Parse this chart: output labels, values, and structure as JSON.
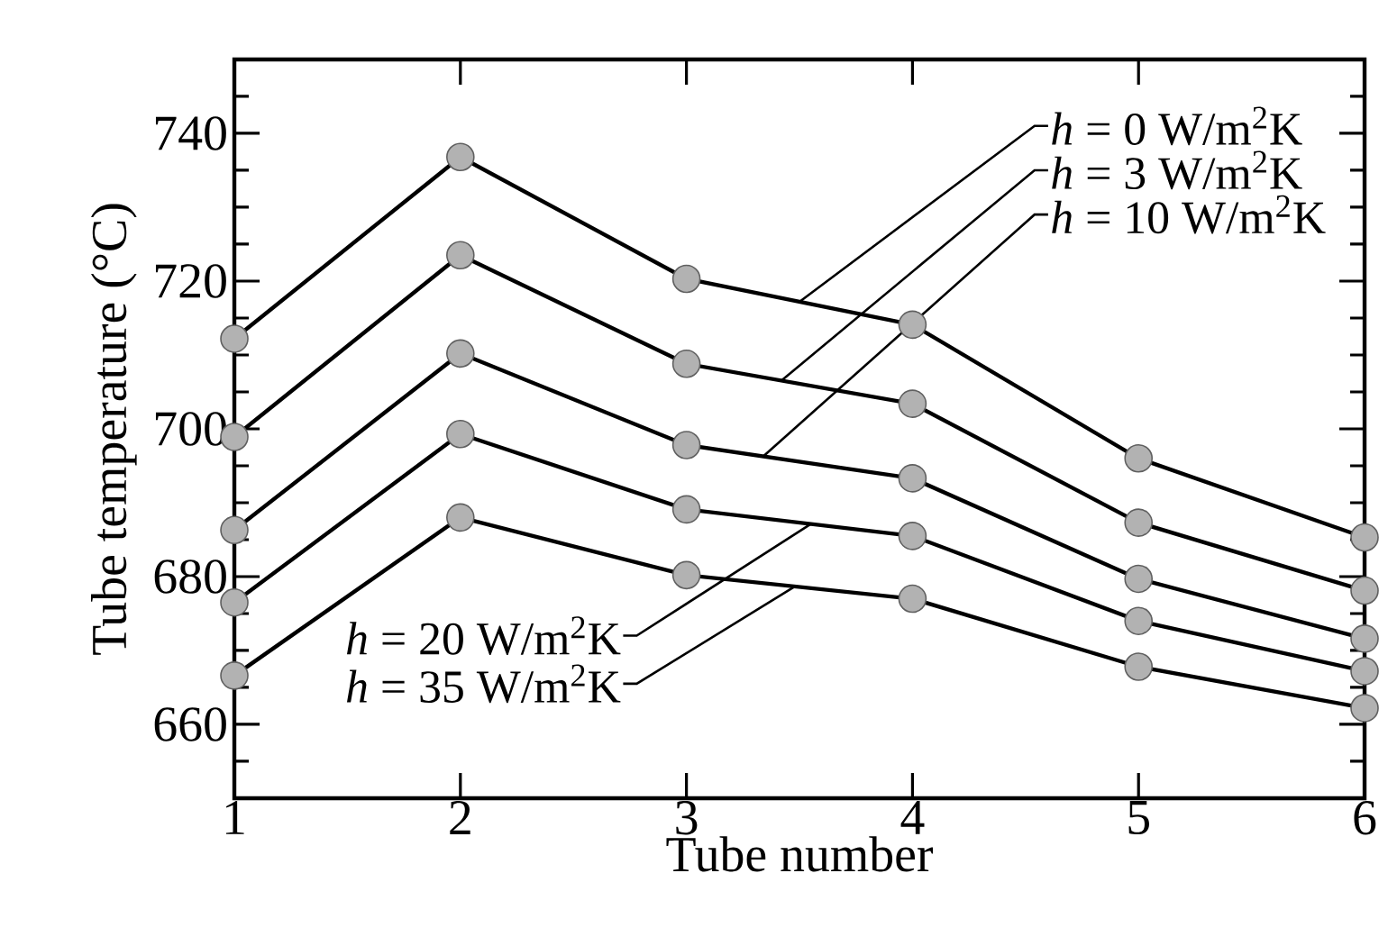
{
  "chart_data": {
    "type": "line",
    "xlabel": "Tube number",
    "ylabel": "Tube temperature (°C)",
    "x": [
      1,
      2,
      3,
      4,
      5,
      6
    ],
    "xlim": [
      1,
      6
    ],
    "xticks": [
      1,
      2,
      3,
      4,
      5,
      6
    ],
    "ylim": [
      650,
      750
    ],
    "yticks": [
      {
        "value": 650,
        "label": null
      },
      {
        "value": 655,
        "label": null
      },
      660,
      {
        "value": 665,
        "label": null
      },
      {
        "value": 670,
        "label": null
      },
      {
        "value": 675,
        "label": null
      },
      680,
      {
        "value": 685,
        "label": null
      },
      {
        "value": 690,
        "label": null
      },
      {
        "value": 695,
        "label": null
      },
      700,
      {
        "value": 705,
        "label": null
      },
      {
        "value": 710,
        "label": null
      },
      {
        "value": 715,
        "label": null
      },
      720,
      {
        "value": 725,
        "label": null
      },
      {
        "value": 730,
        "label": null
      },
      {
        "value": 735,
        "label": null
      },
      740,
      {
        "value": 745,
        "label": null
      },
      {
        "value": 750,
        "label": null
      }
    ],
    "marker": "circle",
    "line_style": "solid",
    "legend": "top right",
    "grid": false,
    "series": [
      {
        "name": "*h* = 0 W/m$^{2}$K",
        "color": "#000000",
        "values": [
          712.2,
          736.8,
          720.3,
          714.1,
          696.0,
          685.3
        ]
      },
      {
        "name": "*h* = 3 W/m$^{2}$K",
        "color": "#000000",
        "values": [
          698.9,
          723.5,
          708.8,
          703.4,
          687.3,
          678.1
        ]
      },
      {
        "name": "*h* = 10 W/m$^{2}$K",
        "color": "#000000",
        "values": [
          686.3,
          710.2,
          697.8,
          693.3,
          679.7,
          671.6
        ]
      },
      {
        "name": "*h* = 20 W/m$^{2}$K",
        "color": "#000000",
        "values": [
          676.5,
          699.3,
          689.1,
          685.5,
          674.0,
          667.2
        ]
      },
      {
        "name": "*h* = 35 W/m$^{2}$K",
        "color": "#000000",
        "values": [
          666.6,
          688.0,
          680.2,
          677.0,
          667.8,
          662.2
        ]
      }
    ]
  }
}
